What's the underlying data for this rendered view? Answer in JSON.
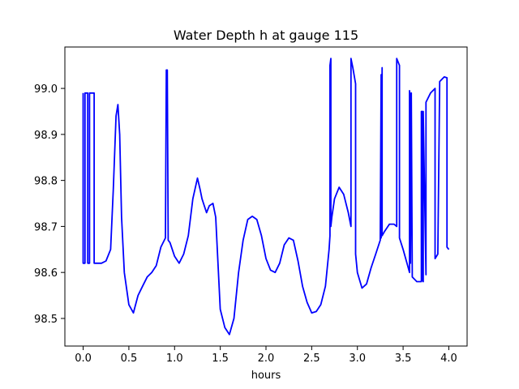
{
  "chart_data": {
    "type": "line",
    "title": "Water Depth h at gauge 115",
    "xlabel": "hours",
    "ylabel": "",
    "xlim": [
      -0.2,
      4.2
    ],
    "ylim": [
      98.44,
      99.09
    ],
    "xticks": [
      0.0,
      0.5,
      1.0,
      1.5,
      2.0,
      2.5,
      3.0,
      3.5,
      4.0
    ],
    "xtick_labels": [
      "0.0",
      "0.5",
      "1.0",
      "1.5",
      "2.0",
      "2.5",
      "3.0",
      "3.5",
      "4.0"
    ],
    "yticks": [
      98.5,
      98.6,
      98.7,
      98.8,
      98.9,
      99.0
    ],
    "ytick_labels": [
      "98.5",
      "98.6",
      "98.7",
      "98.8",
      "98.9",
      "99.0"
    ],
    "grid": false,
    "legend": "none",
    "series": [
      {
        "color": "#0000ff",
        "x": [
          0.0,
          0.0,
          0.02,
          0.02,
          0.05,
          0.05,
          0.07,
          0.07,
          0.12,
          0.12,
          0.2,
          0.25,
          0.3,
          0.33,
          0.36,
          0.38,
          0.4,
          0.42,
          0.45,
          0.5,
          0.55,
          0.6,
          0.65,
          0.7,
          0.75,
          0.8,
          0.85,
          0.9,
          0.91,
          0.92,
          0.93,
          0.95,
          1.0,
          1.05,
          1.1,
          1.15,
          1.2,
          1.25,
          1.28,
          1.3,
          1.35,
          1.38,
          1.42,
          1.45,
          1.5,
          1.55,
          1.6,
          1.65,
          1.7,
          1.75,
          1.8,
          1.85,
          1.9,
          1.95,
          2.0,
          2.05,
          2.1,
          2.15,
          2.2,
          2.25,
          2.3,
          2.35,
          2.4,
          2.45,
          2.5,
          2.55,
          2.6,
          2.65,
          2.69,
          2.7,
          2.7,
          2.71,
          2.71,
          2.72,
          2.75,
          2.8,
          2.85,
          2.9,
          2.93,
          2.93,
          2.95,
          2.98,
          2.98,
          3.0,
          3.05,
          3.1,
          3.15,
          3.2,
          3.25,
          3.26,
          3.26,
          3.27,
          3.27,
          3.3,
          3.35,
          3.4,
          3.43,
          3.43,
          3.46,
          3.46,
          3.5,
          3.55,
          3.57,
          3.57,
          3.58,
          3.58,
          3.59,
          3.59,
          3.6,
          3.65,
          3.7,
          3.7,
          3.71,
          3.71,
          3.72,
          3.72,
          3.75,
          3.75,
          3.8,
          3.85,
          3.85,
          3.88,
          3.9,
          3.95,
          3.98,
          3.98,
          4.0
        ],
        "y": [
          98.99,
          98.62,
          98.62,
          98.99,
          98.99,
          98.62,
          98.62,
          98.99,
          98.99,
          98.62,
          98.62,
          98.625,
          98.65,
          98.78,
          98.94,
          98.965,
          98.9,
          98.72,
          98.6,
          98.53,
          98.512,
          98.55,
          98.57,
          98.59,
          98.6,
          98.615,
          98.655,
          98.675,
          99.04,
          99.04,
          98.67,
          98.665,
          98.635,
          98.62,
          98.64,
          98.68,
          98.76,
          98.805,
          98.78,
          98.76,
          98.73,
          98.745,
          98.75,
          98.72,
          98.52,
          98.48,
          98.465,
          98.5,
          98.6,
          98.67,
          98.715,
          98.722,
          98.715,
          98.68,
          98.63,
          98.605,
          98.6,
          98.62,
          98.66,
          98.675,
          98.67,
          98.625,
          98.57,
          98.535,
          98.512,
          98.515,
          98.53,
          98.57,
          98.65,
          98.68,
          99.05,
          99.065,
          98.7,
          98.72,
          98.76,
          98.785,
          98.77,
          98.73,
          98.7,
          99.065,
          99.045,
          99.01,
          98.64,
          98.6,
          98.566,
          98.575,
          98.61,
          98.64,
          98.67,
          99.03,
          98.675,
          99.045,
          98.68,
          98.69,
          98.705,
          98.705,
          98.7,
          99.065,
          99.05,
          98.675,
          98.65,
          98.615,
          98.6,
          98.995,
          98.98,
          98.62,
          98.99,
          98.985,
          98.59,
          98.58,
          98.58,
          98.95,
          98.95,
          98.585,
          98.58,
          98.95,
          98.595,
          98.97,
          98.99,
          99.0,
          98.63,
          98.64,
          99.015,
          99.025,
          99.023,
          98.655,
          98.65
        ]
      }
    ]
  }
}
